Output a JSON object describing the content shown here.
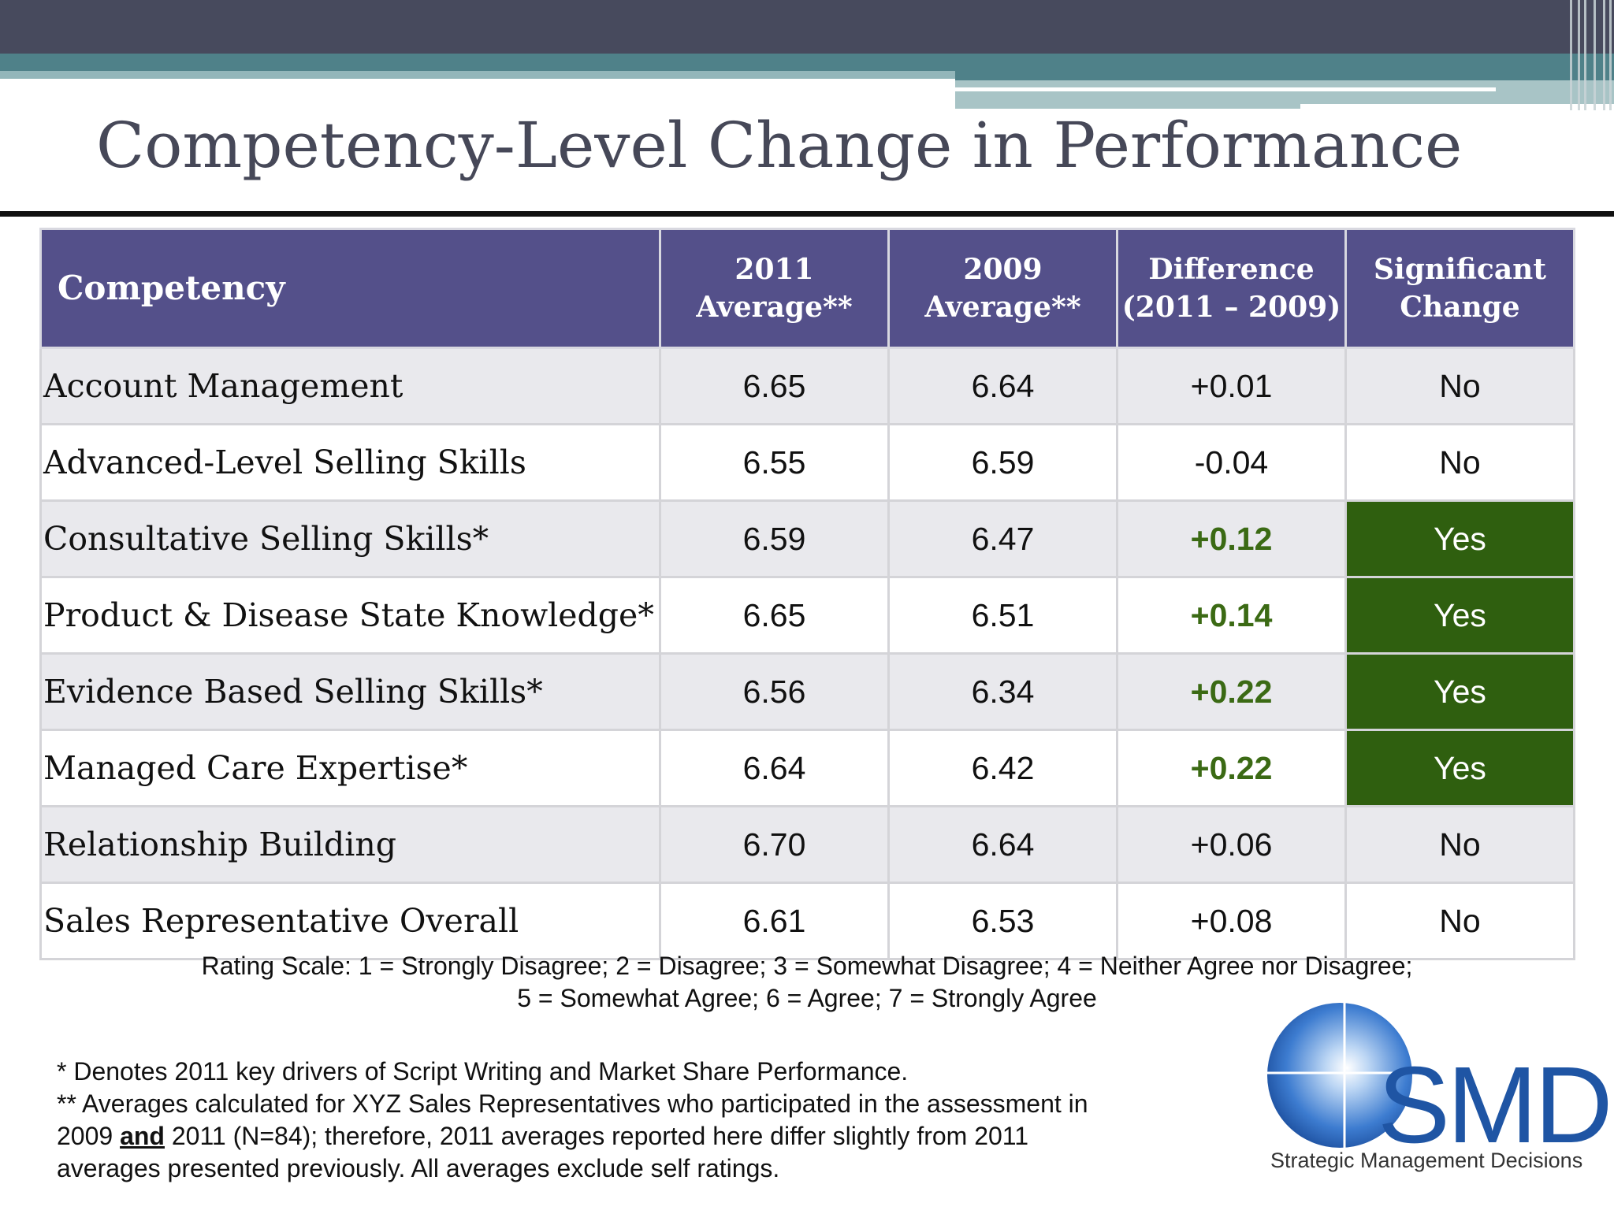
{
  "title": "Competency-Level Change in Performance",
  "colors": {
    "header_bg": "#54508a",
    "significant_cell": "#2f5f0f",
    "significant_text": "#3b6a14",
    "row_alt": "#e9e9ed",
    "logo_blue": "#1f55a4"
  },
  "table": {
    "headers": {
      "competency": "Competency",
      "avg2011_l1": "2011",
      "avg2011_l2": "Average**",
      "avg2009_l1": "2009",
      "avg2009_l2": "Average**",
      "diff_l1": "Difference",
      "diff_l2": "(2011 – 2009)",
      "sig_l1": "Significant",
      "sig_l2": "Change"
    },
    "rows": [
      {
        "competency": "Account Management",
        "avg2011": "6.65",
        "avg2009": "6.64",
        "difference": "+0.01",
        "significant": "No"
      },
      {
        "competency": "Advanced-Level Selling Skills",
        "avg2011": "6.55",
        "avg2009": "6.59",
        "difference": "-0.04",
        "significant": "No"
      },
      {
        "competency": "Consultative Selling Skills*",
        "avg2011": "6.59",
        "avg2009": "6.47",
        "difference": "+0.12",
        "significant": "Yes"
      },
      {
        "competency": "Product & Disease State Knowledge*",
        "avg2011": "6.65",
        "avg2009": "6.51",
        "difference": "+0.14",
        "significant": "Yes"
      },
      {
        "competency": "Evidence Based Selling Skills*",
        "avg2011": "6.56",
        "avg2009": "6.34",
        "difference": "+0.22",
        "significant": "Yes"
      },
      {
        "competency": "Managed Care Expertise*",
        "avg2011": "6.64",
        "avg2009": "6.42",
        "difference": "+0.22",
        "significant": "Yes"
      },
      {
        "competency": "Relationship Building",
        "avg2011": "6.70",
        "avg2009": "6.64",
        "difference": "+0.06",
        "significant": "No"
      },
      {
        "competency": "Sales Representative Overall",
        "avg2011": "6.61",
        "avg2009": "6.53",
        "difference": "+0.08",
        "significant": "No"
      }
    ]
  },
  "rating_scale": {
    "line1": "Rating Scale: 1 = Strongly Disagree; 2 = Disagree; 3 = Somewhat Disagree; 4 = Neither Agree nor Disagree;",
    "line2": "5 = Somewhat Agree; 6 = Agree; 7 = Strongly Agree"
  },
  "footnotes": {
    "note1": "* Denotes 2011 key drivers of Script Writing and Market Share Performance.",
    "note2_line1": "** Averages calculated for XYZ Sales Representatives who participated in the assessment in",
    "note2_line2_pre": "2009 ",
    "note2_line2_bold": "and",
    "note2_line2_post": " 2011 (N=84); therefore, 2011 averages reported here differ slightly from 2011",
    "note2_line3": "averages presented previously. All averages exclude self ratings."
  },
  "logo": {
    "text": "SMD",
    "subtitle": "Strategic Management Decisions",
    "icon": "globe-crosshair-icon"
  }
}
